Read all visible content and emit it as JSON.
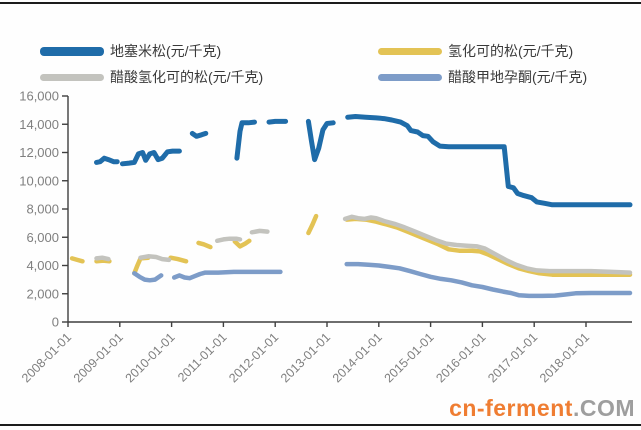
{
  "watermark": {
    "brand": "cn-ferment",
    "suffix": ".COM",
    "brand_color": "#EF7D32",
    "suffix_color": "#9E9E9E"
  },
  "legend": {
    "position": "top",
    "items": [
      {
        "label": "地塞米松(元/千克)",
        "color": "#1F6CA9"
      },
      {
        "label": "氢化可的松(元/千克)",
        "color": "#E3C355"
      },
      {
        "label": "醋酸氢化可的松(元/千克)",
        "color": "#C3C3BE"
      },
      {
        "label": "醋酸甲地孕酮(元/千克)",
        "color": "#7D9CC8"
      }
    ]
  },
  "chart_data": {
    "type": "line",
    "title": "",
    "xlabel": "",
    "ylabel": "",
    "grid": "off",
    "legend_position": "top",
    "x_axis": {
      "min": 2007.92,
      "max": 2018.9,
      "tick_years": [
        2008,
        2009,
        2010,
        2011,
        2012,
        2013,
        2014,
        2015,
        2016,
        2017,
        2018
      ],
      "tick_labels": [
        "2008-01-01",
        "2009-01-01",
        "2010-01-01",
        "2011-01-01",
        "2012-01-01",
        "2013-01-01",
        "2014-01-01",
        "2015-01-01",
        "2016-01-01",
        "2017-01-01",
        "2018-01-01"
      ]
    },
    "y_axis": {
      "min": 0,
      "max": 16000,
      "step": 2000,
      "tick_labels": [
        "0",
        "2,000",
        "4,000",
        "6,000",
        "8,000",
        "10,000",
        "12,000",
        "14,000",
        "16,000"
      ]
    },
    "series": [
      {
        "name": "地塞米松(元/千克)",
        "color": "#1F6CA9",
        "stroke_width": 5,
        "segments": [
          [
            [
              2008.55,
              11300
            ],
            [
              2008.62,
              11350
            ],
            [
              2008.7,
              11600
            ],
            [
              2008.78,
              11500
            ],
            [
              2008.88,
              11350
            ],
            [
              2008.95,
              11350
            ]
          ],
          [
            [
              2009.05,
              11200
            ],
            [
              2009.18,
              11250
            ],
            [
              2009.28,
              11300
            ],
            [
              2009.36,
              11900
            ],
            [
              2009.44,
              12000
            ],
            [
              2009.5,
              11450
            ],
            [
              2009.58,
              11900
            ],
            [
              2009.66,
              12000
            ],
            [
              2009.74,
              11500
            ],
            [
              2009.82,
              11600
            ],
            [
              2009.92,
              12050
            ],
            [
              2010.02,
              12100
            ],
            [
              2010.15,
              12100
            ]
          ],
          [
            [
              2010.4,
              13350
            ],
            [
              2010.48,
              13150
            ],
            [
              2010.58,
              13250
            ],
            [
              2010.66,
              13350
            ]
          ],
          [
            [
              2011.26,
              11600
            ],
            [
              2011.32,
              13500
            ],
            [
              2011.36,
              14100
            ],
            [
              2011.48,
              14100
            ],
            [
              2011.6,
              14150
            ]
          ],
          [
            [
              2011.88,
              14150
            ],
            [
              2012.0,
              14200
            ],
            [
              2012.2,
              14200
            ]
          ],
          [
            [
              2012.64,
              14200
            ],
            [
              2012.7,
              12800
            ],
            [
              2012.76,
              11500
            ],
            [
              2012.84,
              12300
            ],
            [
              2012.92,
              13600
            ],
            [
              2013.0,
              14050
            ],
            [
              2013.12,
              14100
            ]
          ],
          [
            [
              2013.4,
              14500
            ],
            [
              2013.55,
              14550
            ],
            [
              2013.75,
              14500
            ],
            [
              2013.95,
              14450
            ],
            [
              2014.1,
              14400
            ],
            [
              2014.25,
              14300
            ],
            [
              2014.42,
              14150
            ],
            [
              2014.55,
              13900
            ],
            [
              2014.62,
              13550
            ],
            [
              2014.75,
              13450
            ],
            [
              2014.85,
              13200
            ],
            [
              2014.95,
              13150
            ],
            [
              2015.05,
              12750
            ],
            [
              2015.18,
              12450
            ],
            [
              2015.35,
              12400
            ],
            [
              2015.8,
              12400
            ],
            [
              2016.1,
              12400
            ],
            [
              2016.42,
              12400
            ],
            [
              2016.5,
              9600
            ],
            [
              2016.6,
              9500
            ],
            [
              2016.68,
              9100
            ],
            [
              2016.8,
              8950
            ],
            [
              2016.95,
              8800
            ],
            [
              2017.05,
              8500
            ],
            [
              2017.2,
              8400
            ],
            [
              2017.35,
              8300
            ],
            [
              2017.8,
              8300
            ],
            [
              2018.3,
              8300
            ],
            [
              2018.85,
              8300
            ]
          ]
        ]
      },
      {
        "name": "氢化可的松(元/千克)",
        "color": "#E3C355",
        "stroke_width": 4.5,
        "segments": [
          [
            [
              2008.08,
              4500
            ],
            [
              2008.18,
              4400
            ],
            [
              2008.28,
              4300
            ]
          ],
          [
            [
              2008.55,
              4300
            ],
            [
              2008.68,
              4350
            ],
            [
              2008.8,
              4300
            ]
          ],
          [
            [
              2009.28,
              3450
            ],
            [
              2009.34,
              4000
            ],
            [
              2009.4,
              4500
            ],
            [
              2009.55,
              4550
            ]
          ],
          [
            [
              2009.98,
              4550
            ],
            [
              2010.12,
              4450
            ],
            [
              2010.28,
              4300
            ]
          ],
          [
            [
              2010.52,
              5600
            ],
            [
              2010.62,
              5500
            ],
            [
              2010.75,
              5300
            ]
          ],
          [
            [
              2011.22,
              5700
            ],
            [
              2011.32,
              5350
            ],
            [
              2011.42,
              5550
            ],
            [
              2011.5,
              5750
            ]
          ],
          [
            [
              2012.64,
              6300
            ],
            [
              2012.72,
              6900
            ],
            [
              2012.79,
              7500
            ]
          ],
          [
            [
              2013.38,
              7250
            ],
            [
              2013.55,
              7300
            ],
            [
              2013.75,
              7250
            ],
            [
              2013.95,
              7100
            ],
            [
              2014.15,
              6900
            ],
            [
              2014.35,
              6700
            ],
            [
              2014.55,
              6400
            ],
            [
              2014.75,
              6100
            ],
            [
              2014.95,
              5800
            ],
            [
              2015.15,
              5500
            ],
            [
              2015.35,
              5150
            ],
            [
              2015.55,
              5050
            ],
            [
              2015.8,
              5050
            ],
            [
              2015.95,
              5000
            ],
            [
              2016.1,
              4800
            ],
            [
              2016.3,
              4450
            ],
            [
              2016.5,
              4100
            ],
            [
              2016.7,
              3800
            ],
            [
              2016.9,
              3600
            ],
            [
              2017.1,
              3450
            ],
            [
              2017.35,
              3350
            ],
            [
              2017.7,
              3350
            ],
            [
              2018.1,
              3350
            ],
            [
              2018.5,
              3350
            ],
            [
              2018.85,
              3350
            ]
          ]
        ]
      },
      {
        "name": "醋酸氢化可的松(元/千克)",
        "color": "#C3C3BE",
        "stroke_width": 4.5,
        "segments": [
          [
            [
              2008.55,
              4500
            ],
            [
              2008.66,
              4550
            ],
            [
              2008.78,
              4450
            ]
          ],
          [
            [
              2009.4,
              4550
            ],
            [
              2009.55,
              4650
            ],
            [
              2009.7,
              4600
            ],
            [
              2009.82,
              4450
            ],
            [
              2009.95,
              4400
            ]
          ],
          [
            [
              2010.88,
              5750
            ],
            [
              2011.0,
              5850
            ],
            [
              2011.12,
              5900
            ],
            [
              2011.25,
              5900
            ],
            [
              2011.32,
              5850
            ]
          ],
          [
            [
              2011.55,
              6350
            ],
            [
              2011.7,
              6450
            ],
            [
              2011.85,
              6400
            ]
          ],
          [
            [
              2013.35,
              7300
            ],
            [
              2013.48,
              7450
            ],
            [
              2013.6,
              7350
            ],
            [
              2013.72,
              7300
            ],
            [
              2013.85,
              7400
            ],
            [
              2013.95,
              7350
            ],
            [
              2014.1,
              7150
            ],
            [
              2014.3,
              6950
            ],
            [
              2014.5,
              6700
            ],
            [
              2014.7,
              6400
            ],
            [
              2014.9,
              6100
            ],
            [
              2015.1,
              5800
            ],
            [
              2015.3,
              5550
            ],
            [
              2015.5,
              5450
            ],
            [
              2015.7,
              5400
            ],
            [
              2015.9,
              5350
            ],
            [
              2016.05,
              5200
            ],
            [
              2016.25,
              4800
            ],
            [
              2016.45,
              4400
            ],
            [
              2016.65,
              4050
            ],
            [
              2016.85,
              3800
            ],
            [
              2017.05,
              3650
            ],
            [
              2017.3,
              3600
            ],
            [
              2017.7,
              3600
            ],
            [
              2018.1,
              3600
            ],
            [
              2018.5,
              3550
            ],
            [
              2018.85,
              3500
            ]
          ]
        ]
      },
      {
        "name": "醋酸甲地孕酮(元/千克)",
        "color": "#7D9CC8",
        "stroke_width": 4.5,
        "segments": [
          [
            [
              2009.28,
              3450
            ],
            [
              2009.38,
              3200
            ],
            [
              2009.48,
              3000
            ],
            [
              2009.58,
              2950
            ],
            [
              2009.68,
              3000
            ],
            [
              2009.8,
              3300
            ]
          ],
          [
            [
              2010.05,
              3150
            ],
            [
              2010.15,
              3300
            ],
            [
              2010.25,
              3150
            ],
            [
              2010.35,
              3100
            ],
            [
              2010.45,
              3250
            ],
            [
              2010.55,
              3400
            ],
            [
              2010.65,
              3500
            ],
            [
              2010.9,
              3500
            ],
            [
              2011.2,
              3550
            ],
            [
              2011.6,
              3550
            ],
            [
              2012.0,
              3550
            ],
            [
              2012.1,
              3550
            ]
          ],
          [
            [
              2013.38,
              4100
            ],
            [
              2013.6,
              4100
            ],
            [
              2013.8,
              4050
            ],
            [
              2014.0,
              4000
            ],
            [
              2014.2,
              3900
            ],
            [
              2014.4,
              3800
            ],
            [
              2014.6,
              3600
            ],
            [
              2014.8,
              3400
            ],
            [
              2015.0,
              3200
            ],
            [
              2015.2,
              3050
            ],
            [
              2015.4,
              2950
            ],
            [
              2015.6,
              2800
            ],
            [
              2015.8,
              2600
            ],
            [
              2016.0,
              2480
            ],
            [
              2016.2,
              2300
            ],
            [
              2016.4,
              2150
            ],
            [
              2016.55,
              2050
            ],
            [
              2016.7,
              1900
            ],
            [
              2016.9,
              1850
            ],
            [
              2017.15,
              1850
            ],
            [
              2017.4,
              1870
            ],
            [
              2017.6,
              1950
            ],
            [
              2017.8,
              2030
            ],
            [
              2018.1,
              2050
            ],
            [
              2018.5,
              2050
            ],
            [
              2018.85,
              2050
            ]
          ]
        ]
      }
    ]
  }
}
